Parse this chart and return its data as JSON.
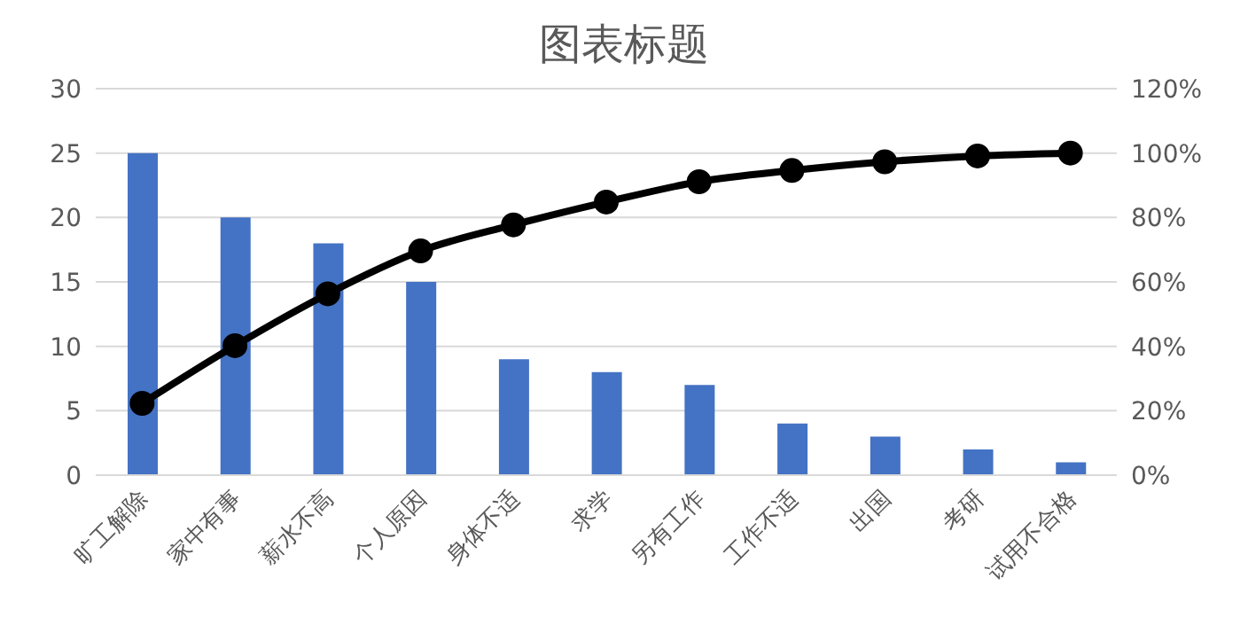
{
  "chart_data": {
    "type": "bar",
    "title": "图表标题",
    "categories": [
      "旷工解除",
      "家中有事",
      "薪水不高",
      "个人原因",
      "身体不适",
      "求学",
      "另有工作",
      "工作不适",
      "出国",
      "考研",
      "试用不合格"
    ],
    "series": [
      {
        "color": "#4472c4",
        "values": [
          25,
          20,
          18,
          15,
          9,
          8,
          7,
          4,
          3,
          2,
          1
        ]
      },
      {
        "type": "line",
        "axis": "y2",
        "color": "#000000",
        "marker": "circle",
        "values": [
          22.3,
          40.2,
          56.3,
          69.6,
          77.7,
          84.8,
          91.1,
          94.6,
          97.3,
          99.1,
          100
        ]
      }
    ],
    "ylim": [
      0,
      30
    ],
    "yticks": [
      0,
      5,
      10,
      15,
      20,
      25,
      30
    ],
    "y2lim": [
      0,
      120
    ],
    "y2ticks": [
      {
        "value": 0,
        "label": "0%"
      },
      {
        "value": 20,
        "label": "20%"
      },
      {
        "value": 40,
        "label": "40%"
      },
      {
        "value": 60,
        "label": "60%"
      },
      {
        "value": 80,
        "label": "80%"
      },
      {
        "value": 100,
        "label": "100%"
      },
      {
        "value": 120,
        "label": "120%"
      }
    ],
    "grid": "y"
  }
}
